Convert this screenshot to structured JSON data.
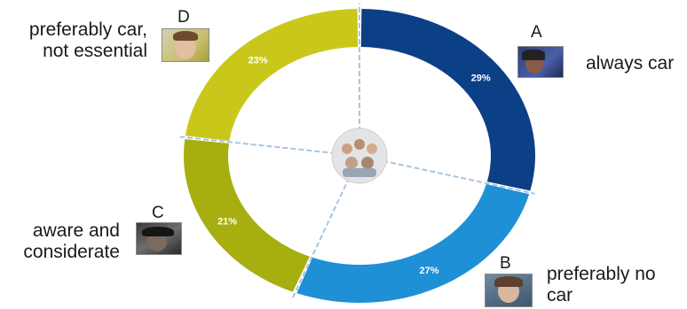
{
  "chart_data": {
    "type": "pie",
    "style": "donut",
    "segments": [
      {
        "letter": "A",
        "category": "always car",
        "value": 29,
        "display": "29%",
        "color": "#0b3f86"
      },
      {
        "letter": "B",
        "category": "preferably no\ncar",
        "value": 27,
        "display": "27%",
        "color": "#1f8fd6"
      },
      {
        "letter": "C",
        "category": "aware and\nconsiderate",
        "value": 21,
        "display": "21%",
        "color": "#a6ae10"
      },
      {
        "letter": "D",
        "category": "preferably car,\nnot essential",
        "value": 23,
        "display": "23%",
        "color": "#c9c81a"
      }
    ],
    "legend": "none",
    "grid": false
  }
}
